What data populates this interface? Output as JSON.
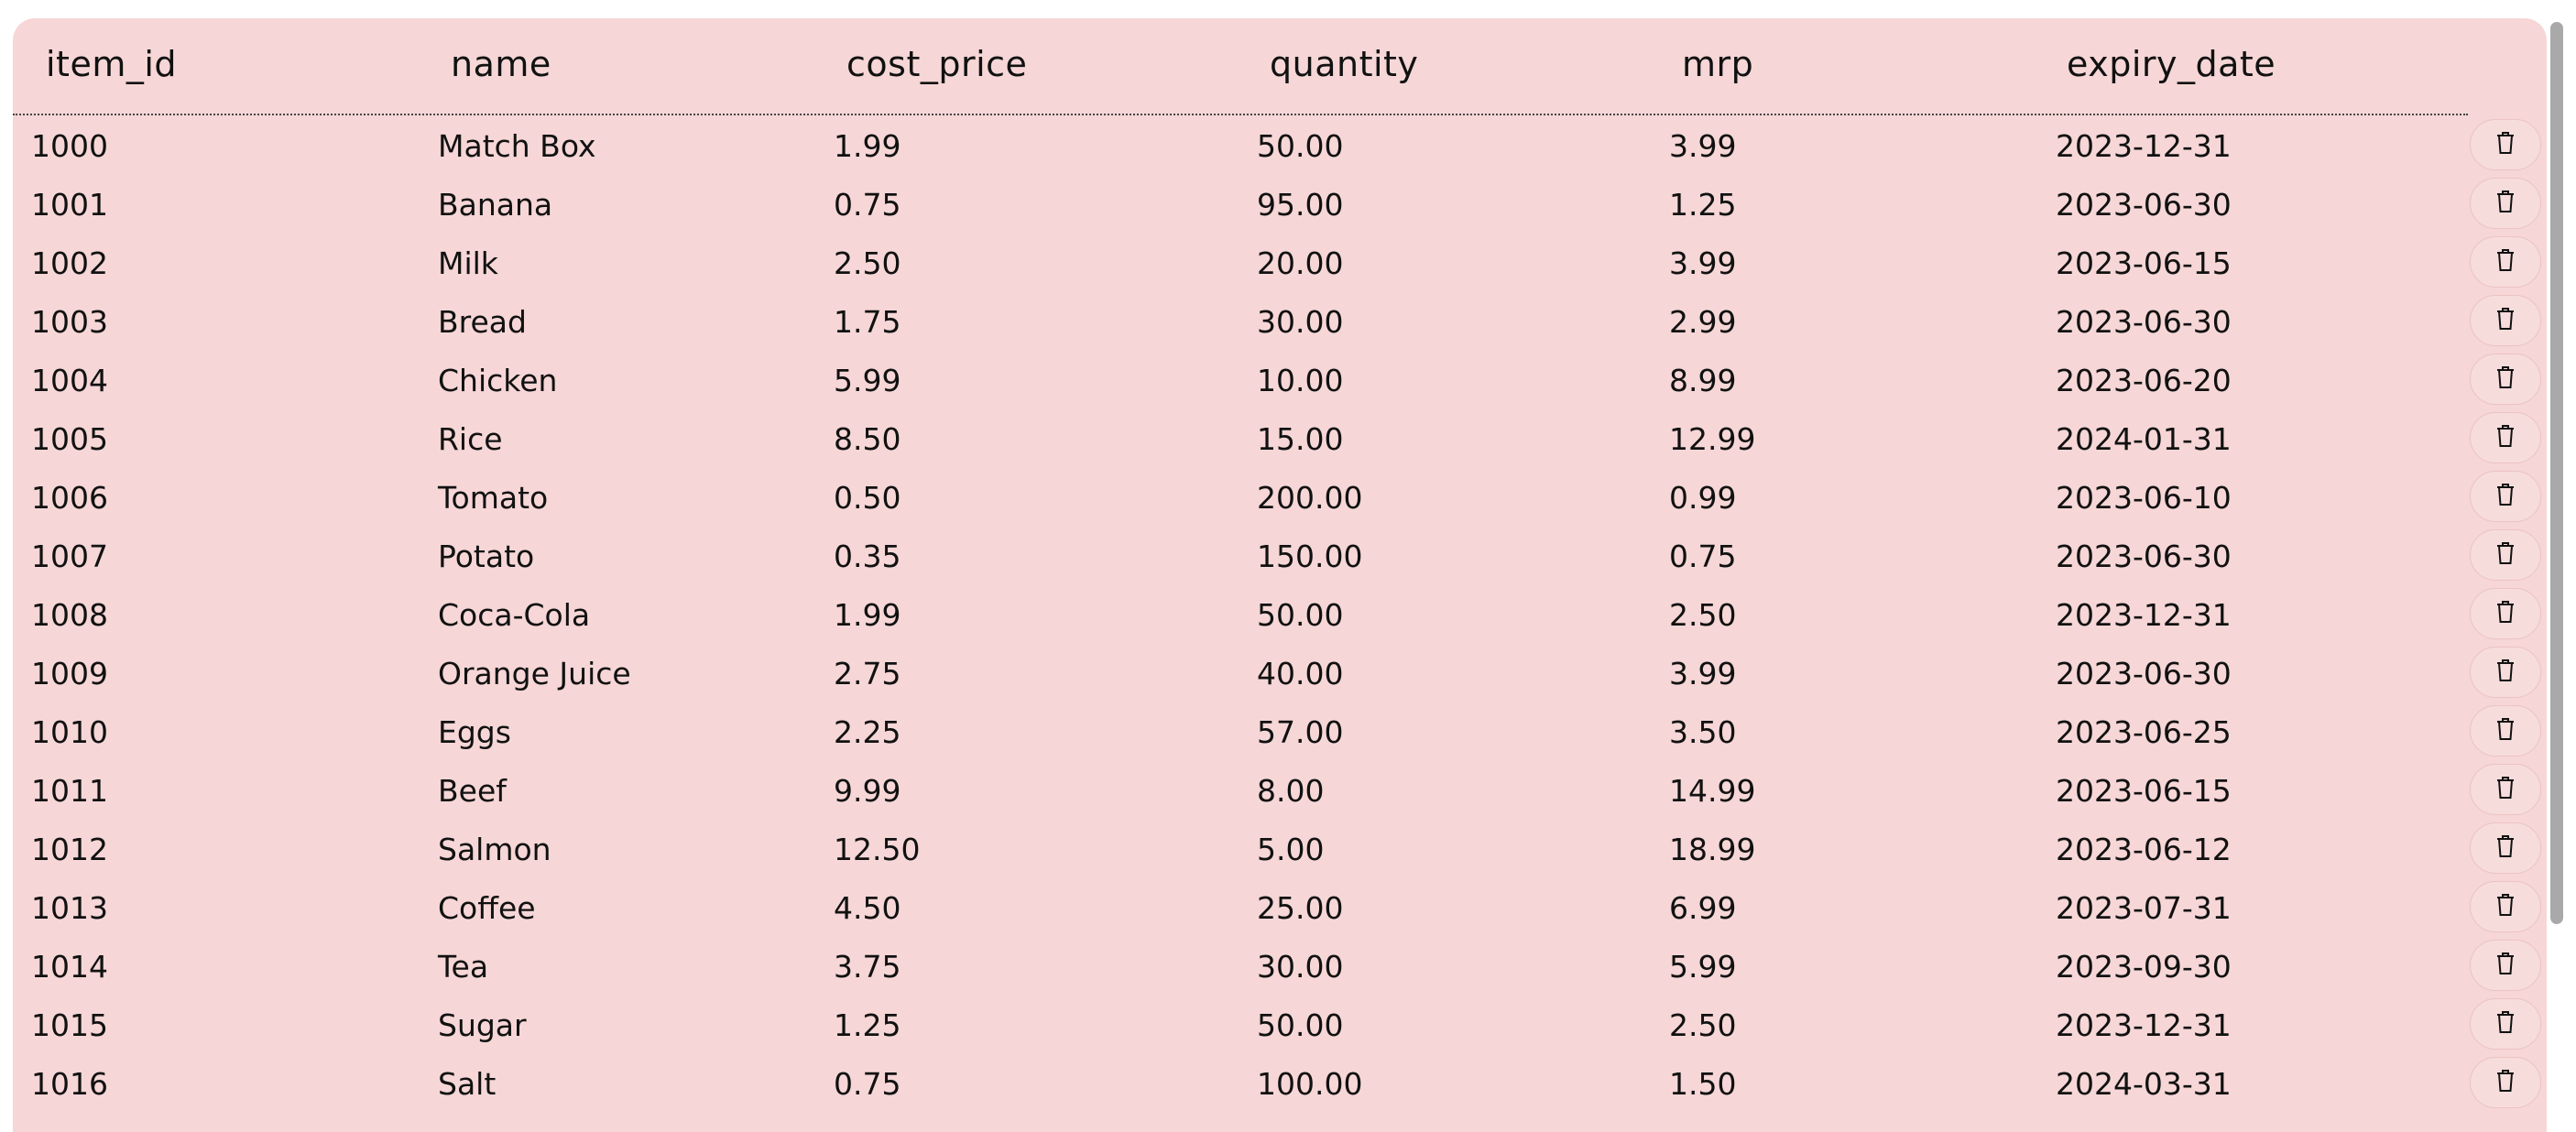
{
  "table": {
    "columns": [
      "item_id",
      "name",
      "cost_price",
      "quantity",
      "mrp",
      "expiry_date"
    ],
    "rows": [
      [
        "1000",
        "Match Box",
        "1.99",
        "50.00",
        "3.99",
        "2023-12-31"
      ],
      [
        "1001",
        "Banana",
        "0.75",
        "95.00",
        "1.25",
        "2023-06-30"
      ],
      [
        "1002",
        "Milk",
        "2.50",
        "20.00",
        "3.99",
        "2023-06-15"
      ],
      [
        "1003",
        "Bread",
        "1.75",
        "30.00",
        "2.99",
        "2023-06-30"
      ],
      [
        "1004",
        "Chicken",
        "5.99",
        "10.00",
        "8.99",
        "2023-06-20"
      ],
      [
        "1005",
        "Rice",
        "8.50",
        "15.00",
        "12.99",
        "2024-01-31"
      ],
      [
        "1006",
        "Tomato",
        "0.50",
        "200.00",
        "0.99",
        "2023-06-10"
      ],
      [
        "1007",
        "Potato",
        "0.35",
        "150.00",
        "0.75",
        "2023-06-30"
      ],
      [
        "1008",
        "Coca-Cola",
        "1.99",
        "50.00",
        "2.50",
        "2023-12-31"
      ],
      [
        "1009",
        "Orange Juice",
        "2.75",
        "40.00",
        "3.99",
        "2023-06-30"
      ],
      [
        "1010",
        "Eggs",
        "2.25",
        "57.00",
        "3.50",
        "2023-06-25"
      ],
      [
        "1011",
        "Beef",
        "9.99",
        "8.00",
        "14.99",
        "2023-06-15"
      ],
      [
        "1012",
        "Salmon",
        "12.50",
        "5.00",
        "18.99",
        "2023-06-12"
      ],
      [
        "1013",
        "Coffee",
        "4.50",
        "25.00",
        "6.99",
        "2023-07-31"
      ],
      [
        "1014",
        "Tea",
        "3.75",
        "30.00",
        "5.99",
        "2023-09-30"
      ],
      [
        "1015",
        "Sugar",
        "1.25",
        "50.00",
        "2.50",
        "2023-12-31"
      ],
      [
        "1016",
        "Salt",
        "0.75",
        "100.00",
        "1.50",
        "2024-03-31"
      ]
    ],
    "row_action_icon": "trash-icon"
  },
  "colors": {
    "panel_background": "#f6d6d6",
    "delete_button_border": "#ecc3c3",
    "scrollbar_thumb": "#a9a9a9"
  }
}
